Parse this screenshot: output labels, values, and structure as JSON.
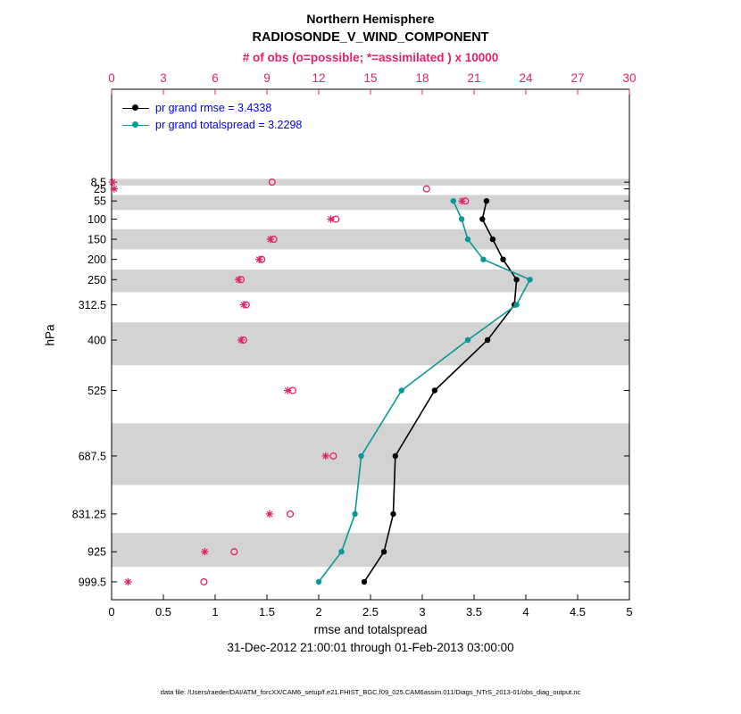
{
  "title": {
    "line1": "Northern Hemisphere",
    "line2": "RADIOSONDE_V_WIND_COMPONENT"
  },
  "legend": {
    "text_color": "#0000ee",
    "items": [
      {
        "label": "pr grand rmse = 3.4338",
        "series": "rmse",
        "color": "#000000"
      },
      {
        "label": "pr grand totalspread = 3.2298",
        "series": "totalspread",
        "color": "#0b9797"
      }
    ]
  },
  "footer": {
    "xaxis_label": "rmse and totalspread",
    "date_range": "31-Dec-2012 21:00:01 through 01-Feb-2013 03:00:00",
    "data_file": "data file: /Users/raeder/DAI/ATM_forcXX/CAM6_setup/f.e21.FHIST_BGC.f09_025.CAM6assim.011/Diags_NTrS_2013-01/obs_diag_output.nc"
  },
  "chart_data": {
    "type": "line",
    "profile": "vertical pressure profile, pressure increases downward (linear)",
    "title": "Northern Hemisphere RADIOSONDE_V_WIND_COMPONENT",
    "grid": false,
    "legend_position": "top-left-inside",
    "band_color": "#d3d3d3",
    "obs_axis": {
      "label": "# of obs (o=possible; *=assimilated ) x 10000",
      "ticks": [
        "0",
        "3",
        "6",
        "9",
        "12",
        "15",
        "18",
        "21",
        "24",
        "27",
        "30"
      ],
      "lim": [
        0,
        30
      ],
      "color": "#e0226b"
    },
    "x_axis": {
      "label": "rmse and totalspread",
      "ticks": [
        "0",
        "0.5",
        "1",
        "1.5",
        "2",
        "2.5",
        "3",
        "3.5",
        "4",
        "4.5",
        "5"
      ],
      "lim": [
        0,
        5
      ]
    },
    "y_axis": {
      "label": "hPa",
      "tick_levels_hpa": [
        8.5,
        25,
        55,
        100,
        150,
        200,
        250,
        312.5,
        400,
        525,
        687.5,
        831.25,
        925,
        999.5
      ],
      "lim_hpa": [
        -222,
        1044
      ]
    },
    "series": [
      {
        "name": "rmse",
        "legend": "pr grand rmse = 3.4338",
        "color": "#000000",
        "marker": "filled-circle",
        "levels_hpa": [
          55,
          100,
          150,
          200,
          250,
          312.5,
          400,
          525,
          687.5,
          831.25,
          925,
          999.5
        ],
        "values": [
          3.62,
          3.58,
          3.68,
          3.78,
          3.91,
          3.89,
          3.63,
          3.12,
          2.74,
          2.72,
          2.63,
          2.44
        ]
      },
      {
        "name": "totalspread",
        "legend": "pr grand totalspread = 3.2298",
        "color": "#0b9797",
        "marker": "filled-circle",
        "levels_hpa": [
          55,
          100,
          150,
          200,
          250,
          312.5,
          400,
          525,
          687.5,
          831.25,
          925,
          999.5
        ],
        "values": [
          3.3,
          3.38,
          3.44,
          3.59,
          4.04,
          3.91,
          3.44,
          2.8,
          2.41,
          2.35,
          2.22,
          2.0
        ]
      }
    ],
    "obs_counts_x10000": {
      "levels_hpa": [
        8.5,
        25,
        55,
        100,
        150,
        200,
        250,
        312.5,
        400,
        525,
        687.5,
        831.25,
        925,
        999.5
      ],
      "possible": [
        9.3,
        18.25,
        20.5,
        13.0,
        9.4,
        8.7,
        7.5,
        7.8,
        7.65,
        10.5,
        12.85,
        10.35,
        7.1,
        5.35
      ],
      "assimilated": [
        0.05,
        0.15,
        20.3,
        12.7,
        9.2,
        8.55,
        7.35,
        7.65,
        7.5,
        10.2,
        12.4,
        9.15,
        5.4,
        0.95
      ]
    },
    "shaded_bands_hpa": [
      [
        0.25,
        16.75
      ],
      [
        40,
        77.5
      ],
      [
        125,
        175
      ],
      [
        225,
        281.25
      ],
      [
        356.25,
        462.5
      ],
      [
        606.25,
        759.375
      ],
      [
        878.125,
        962.25
      ]
    ]
  }
}
